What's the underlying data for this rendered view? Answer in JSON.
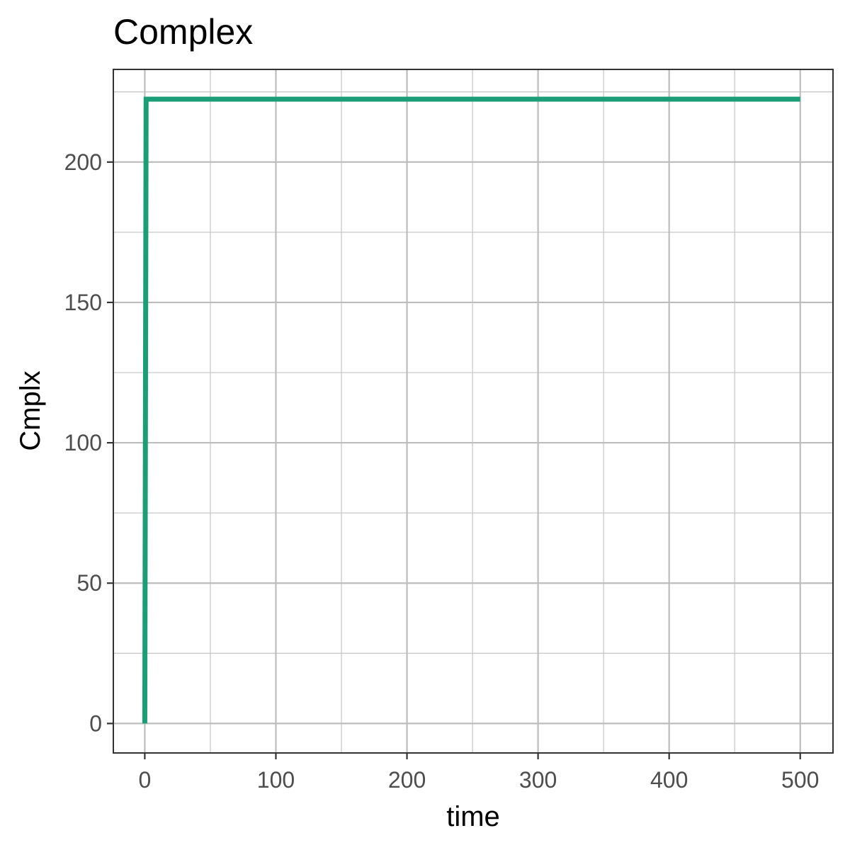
{
  "chart_data": {
    "type": "line",
    "title": "Complex",
    "xlabel": "time",
    "ylabel": "Cmplx",
    "xlim": [
      -24,
      525
    ],
    "ylim": [
      -10.5,
      233
    ],
    "x_ticks": [
      0,
      100,
      200,
      300,
      400,
      500
    ],
    "x_tick_labels": [
      "0",
      "100",
      "200",
      "300",
      "400",
      "500"
    ],
    "x_minor_ticks": [
      50,
      150,
      250,
      350,
      450
    ],
    "y_ticks": [
      0,
      50,
      100,
      150,
      200
    ],
    "y_tick_labels": [
      "0",
      "50",
      "100",
      "150",
      "200"
    ],
    "y_minor_ticks": [
      25,
      75,
      125,
      175,
      225
    ],
    "grid": true,
    "legend": "none",
    "series": [
      {
        "color": "#1b9e77",
        "x": [
          0,
          1,
          500
        ],
        "y": [
          0,
          222.4,
          222.4
        ]
      }
    ]
  }
}
